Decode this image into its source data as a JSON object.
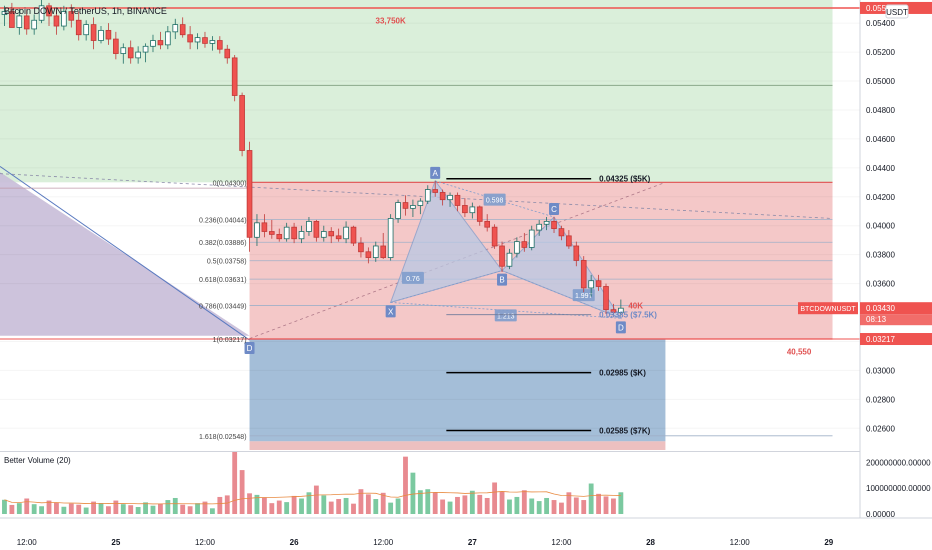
{
  "header": {
    "symbol": "Bitcoin DOWN / TetherUS, 1h, BINANCE",
    "currency": "USDT"
  },
  "colors": {
    "up": "#26a69a",
    "down": "#ef5350",
    "green_zone": "#d8eed8",
    "red_zone": "#f3c2c2",
    "blue_zone": "#9fbad6",
    "purple_zone": "#c8bcd8",
    "pattern_fill": "#b8c8e4",
    "pattern_line": "#7e9ccc",
    "price_tag": "#ef5350",
    "level_line": "#ef5350"
  },
  "chart_data": [
    {
      "type": "candlestick",
      "title": "",
      "symbol_label": "Bitcoin DOWN / TetherUS, 1h, BINANCE",
      "y_ticks": [
        "0.05400",
        "0.05200",
        "0.05000",
        "0.04800",
        "0.04600",
        "0.04400",
        "0.04200",
        "0.04000",
        "0.03800",
        "0.03600",
        "0.03200",
        "0.03000",
        "0.02800",
        "0.02600"
      ],
      "y_tick_values": [
        0.054,
        0.052,
        0.05,
        0.048,
        0.046,
        0.044,
        0.042,
        0.04,
        0.038,
        0.036,
        0.032,
        0.03,
        0.028,
        0.026
      ],
      "ylim": [
        0.0245,
        0.0556
      ],
      "x_ticks": [
        "12:00",
        "25",
        "12:00",
        "26",
        "12:00",
        "27",
        "12:00",
        "28",
        "12:00",
        "29"
      ],
      "x_tick_values": [
        12,
        24,
        36,
        48,
        60,
        72,
        84,
        96,
        108,
        120
      ],
      "xlim": [
        8.4,
        124.2
      ],
      "candles": [
        {
          "t": 9,
          "o": 0.0546,
          "h": 0.0552,
          "l": 0.0538,
          "c": 0.0548
        },
        {
          "t": 10,
          "o": 0.0548,
          "h": 0.0554,
          "l": 0.054,
          "c": 0.0537
        },
        {
          "t": 11,
          "o": 0.0537,
          "h": 0.055,
          "l": 0.0532,
          "c": 0.0545
        },
        {
          "t": 12,
          "o": 0.0545,
          "h": 0.0549,
          "l": 0.0532,
          "c": 0.0536
        },
        {
          "t": 13,
          "o": 0.0536,
          "h": 0.0546,
          "l": 0.0532,
          "c": 0.0542
        },
        {
          "t": 14,
          "o": 0.0542,
          "h": 0.0556,
          "l": 0.054,
          "c": 0.0552
        },
        {
          "t": 15,
          "o": 0.0552,
          "h": 0.0554,
          "l": 0.0538,
          "c": 0.0545
        },
        {
          "t": 16,
          "o": 0.0545,
          "h": 0.0549,
          "l": 0.0532,
          "c": 0.0538
        },
        {
          "t": 17,
          "o": 0.0538,
          "h": 0.0552,
          "l": 0.0535,
          "c": 0.0548
        },
        {
          "t": 18,
          "o": 0.0548,
          "h": 0.0553,
          "l": 0.0537,
          "c": 0.0542
        },
        {
          "t": 19,
          "o": 0.0542,
          "h": 0.0548,
          "l": 0.0528,
          "c": 0.0532
        },
        {
          "t": 20,
          "o": 0.0532,
          "h": 0.0542,
          "l": 0.0528,
          "c": 0.0539
        },
        {
          "t": 21,
          "o": 0.0539,
          "h": 0.0544,
          "l": 0.0522,
          "c": 0.0528
        },
        {
          "t": 22,
          "o": 0.0528,
          "h": 0.0538,
          "l": 0.0526,
          "c": 0.0535
        },
        {
          "t": 23,
          "o": 0.0535,
          "h": 0.054,
          "l": 0.0525,
          "c": 0.0529
        },
        {
          "t": 24,
          "o": 0.0529,
          "h": 0.0534,
          "l": 0.0515,
          "c": 0.0519
        },
        {
          "t": 25,
          "o": 0.0519,
          "h": 0.0526,
          "l": 0.0512,
          "c": 0.0523
        },
        {
          "t": 26,
          "o": 0.0523,
          "h": 0.0528,
          "l": 0.0512,
          "c": 0.0516
        },
        {
          "t": 27,
          "o": 0.0516,
          "h": 0.0524,
          "l": 0.0512,
          "c": 0.052
        },
        {
          "t": 28,
          "o": 0.052,
          "h": 0.0526,
          "l": 0.0513,
          "c": 0.0524
        },
        {
          "t": 29,
          "o": 0.0524,
          "h": 0.0532,
          "l": 0.052,
          "c": 0.0528
        },
        {
          "t": 30,
          "o": 0.0528,
          "h": 0.0534,
          "l": 0.0522,
          "c": 0.0525
        },
        {
          "t": 31,
          "o": 0.0525,
          "h": 0.0538,
          "l": 0.0522,
          "c": 0.0534
        },
        {
          "t": 32,
          "o": 0.0534,
          "h": 0.0543,
          "l": 0.0529,
          "c": 0.0539
        },
        {
          "t": 33,
          "o": 0.0539,
          "h": 0.0544,
          "l": 0.053,
          "c": 0.0532
        },
        {
          "t": 34,
          "o": 0.0532,
          "h": 0.0538,
          "l": 0.0522,
          "c": 0.0527
        },
        {
          "t": 35,
          "o": 0.0527,
          "h": 0.0533,
          "l": 0.0522,
          "c": 0.053
        },
        {
          "t": 36,
          "o": 0.053,
          "h": 0.0534,
          "l": 0.0523,
          "c": 0.0526
        },
        {
          "t": 37,
          "o": 0.0526,
          "h": 0.0531,
          "l": 0.0521,
          "c": 0.0528
        },
        {
          "t": 38,
          "o": 0.0528,
          "h": 0.0531,
          "l": 0.0519,
          "c": 0.0522
        },
        {
          "t": 39,
          "o": 0.0522,
          "h": 0.0525,
          "l": 0.0512,
          "c": 0.0516
        },
        {
          "t": 40,
          "o": 0.0516,
          "h": 0.0518,
          "l": 0.0486,
          "c": 0.049
        },
        {
          "t": 41,
          "o": 0.049,
          "h": 0.0492,
          "l": 0.0448,
          "c": 0.0452
        },
        {
          "t": 42,
          "o": 0.0452,
          "h": 0.0458,
          "l": 0.0382,
          "c": 0.0392
        },
        {
          "t": 43,
          "o": 0.0392,
          "h": 0.0408,
          "l": 0.0386,
          "c": 0.0402
        },
        {
          "t": 44,
          "o": 0.0402,
          "h": 0.0408,
          "l": 0.0392,
          "c": 0.0396
        },
        {
          "t": 45,
          "o": 0.0396,
          "h": 0.0404,
          "l": 0.0391,
          "c": 0.0394
        },
        {
          "t": 46,
          "o": 0.0394,
          "h": 0.0398,
          "l": 0.0389,
          "c": 0.0391
        },
        {
          "t": 47,
          "o": 0.0391,
          "h": 0.0402,
          "l": 0.0389,
          "c": 0.0399
        },
        {
          "t": 48,
          "o": 0.0399,
          "h": 0.0402,
          "l": 0.0388,
          "c": 0.0391
        },
        {
          "t": 49,
          "o": 0.0391,
          "h": 0.04,
          "l": 0.0388,
          "c": 0.0396
        },
        {
          "t": 50,
          "o": 0.0396,
          "h": 0.0406,
          "l": 0.0393,
          "c": 0.0403
        },
        {
          "t": 51,
          "o": 0.0403,
          "h": 0.0404,
          "l": 0.0389,
          "c": 0.0392
        },
        {
          "t": 52,
          "o": 0.0392,
          "h": 0.04,
          "l": 0.0389,
          "c": 0.0396
        },
        {
          "t": 53,
          "o": 0.0396,
          "h": 0.0399,
          "l": 0.0388,
          "c": 0.0393
        },
        {
          "t": 54,
          "o": 0.0393,
          "h": 0.0398,
          "l": 0.0389,
          "c": 0.0391
        },
        {
          "t": 55,
          "o": 0.0391,
          "h": 0.0403,
          "l": 0.0388,
          "c": 0.0399
        },
        {
          "t": 56,
          "o": 0.0399,
          "h": 0.04,
          "l": 0.0386,
          "c": 0.0388
        },
        {
          "t": 57,
          "o": 0.0388,
          "h": 0.0392,
          "l": 0.0378,
          "c": 0.0382
        },
        {
          "t": 58,
          "o": 0.0382,
          "h": 0.0385,
          "l": 0.0374,
          "c": 0.0378
        },
        {
          "t": 59,
          "o": 0.0378,
          "h": 0.0389,
          "l": 0.0375,
          "c": 0.0386
        },
        {
          "t": 60,
          "o": 0.0386,
          "h": 0.0395,
          "l": 0.0377,
          "c": 0.0378
        },
        {
          "t": 61,
          "o": 0.0378,
          "h": 0.0408,
          "l": 0.0376,
          "c": 0.0405
        },
        {
          "t": 62,
          "o": 0.0405,
          "h": 0.0418,
          "l": 0.0402,
          "c": 0.0416
        },
        {
          "t": 63,
          "o": 0.0416,
          "h": 0.0421,
          "l": 0.0407,
          "c": 0.0412
        },
        {
          "t": 64,
          "o": 0.0412,
          "h": 0.0418,
          "l": 0.0406,
          "c": 0.0414
        },
        {
          "t": 65,
          "o": 0.0414,
          "h": 0.0419,
          "l": 0.0408,
          "c": 0.0417
        },
        {
          "t": 66,
          "o": 0.0417,
          "h": 0.0428,
          "l": 0.0415,
          "c": 0.0425
        },
        {
          "t": 67,
          "o": 0.0425,
          "h": 0.0431,
          "l": 0.042,
          "c": 0.0423
        },
        {
          "t": 68,
          "o": 0.0423,
          "h": 0.0425,
          "l": 0.0414,
          "c": 0.0418
        },
        {
          "t": 69,
          "o": 0.0418,
          "h": 0.0423,
          "l": 0.0413,
          "c": 0.0421
        },
        {
          "t": 70,
          "o": 0.0421,
          "h": 0.0423,
          "l": 0.041,
          "c": 0.0414
        },
        {
          "t": 71,
          "o": 0.0414,
          "h": 0.0419,
          "l": 0.0406,
          "c": 0.0409
        },
        {
          "t": 72,
          "o": 0.0409,
          "h": 0.0416,
          "l": 0.0405,
          "c": 0.0413
        },
        {
          "t": 73,
          "o": 0.0413,
          "h": 0.0414,
          "l": 0.04,
          "c": 0.0403
        },
        {
          "t": 74,
          "o": 0.0403,
          "h": 0.0408,
          "l": 0.0396,
          "c": 0.0399
        },
        {
          "t": 75,
          "o": 0.0399,
          "h": 0.0401,
          "l": 0.0384,
          "c": 0.0386
        },
        {
          "t": 76,
          "o": 0.0386,
          "h": 0.0389,
          "l": 0.0368,
          "c": 0.0372
        },
        {
          "t": 77,
          "o": 0.0372,
          "h": 0.0384,
          "l": 0.037,
          "c": 0.0381
        },
        {
          "t": 78,
          "o": 0.0381,
          "h": 0.0392,
          "l": 0.0378,
          "c": 0.0389
        },
        {
          "t": 79,
          "o": 0.0389,
          "h": 0.0395,
          "l": 0.0382,
          "c": 0.0385
        },
        {
          "t": 80,
          "o": 0.0385,
          "h": 0.04,
          "l": 0.0383,
          "c": 0.0397
        },
        {
          "t": 81,
          "o": 0.0397,
          "h": 0.0404,
          "l": 0.0393,
          "c": 0.0401
        },
        {
          "t": 82,
          "o": 0.0401,
          "h": 0.0406,
          "l": 0.0397,
          "c": 0.0403
        },
        {
          "t": 83,
          "o": 0.0403,
          "h": 0.0406,
          "l": 0.0395,
          "c": 0.0398
        },
        {
          "t": 84,
          "o": 0.0398,
          "h": 0.04,
          "l": 0.039,
          "c": 0.0393
        },
        {
          "t": 85,
          "o": 0.0393,
          "h": 0.0397,
          "l": 0.0384,
          "c": 0.0386
        },
        {
          "t": 86,
          "o": 0.0386,
          "h": 0.0389,
          "l": 0.0372,
          "c": 0.0376
        },
        {
          "t": 87,
          "o": 0.0376,
          "h": 0.0379,
          "l": 0.0354,
          "c": 0.0357
        },
        {
          "t": 88,
          "o": 0.0357,
          "h": 0.0366,
          "l": 0.0351,
          "c": 0.0362
        },
        {
          "t": 89,
          "o": 0.0362,
          "h": 0.0366,
          "l": 0.0355,
          "c": 0.0358
        },
        {
          "t": 90,
          "o": 0.0358,
          "h": 0.036,
          "l": 0.0339,
          "c": 0.0342
        },
        {
          "t": 91,
          "o": 0.0342,
          "h": 0.0346,
          "l": 0.0338,
          "c": 0.034
        },
        {
          "t": 92,
          "o": 0.034,
          "h": 0.0349,
          "l": 0.0338,
          "c": 0.0343
        }
      ],
      "volume": {
        "title": "Better Volume (20)",
        "y_ticks": [
          "200000000.00000",
          "100000000.00000",
          "0.00000"
        ],
        "y_tick_values": [
          200000000,
          100000000,
          0
        ],
        "ylim": [
          0,
          240000000
        ],
        "values": [
          55000000,
          35000000,
          42000000,
          60000000,
          38000000,
          30000000,
          52000000,
          44000000,
          28000000,
          40000000,
          36000000,
          25000000,
          48000000,
          42000000,
          30000000,
          52000000,
          38000000,
          34000000,
          27000000,
          45000000,
          32000000,
          40000000,
          54000000,
          62000000,
          36000000,
          30000000,
          42000000,
          48000000,
          22000000,
          66000000,
          72000000,
          240000000,
          170000000,
          80000000,
          74000000,
          64000000,
          42000000,
          52000000,
          46000000,
          70000000,
          60000000,
          84000000,
          110000000,
          72000000,
          48000000,
          58000000,
          62000000,
          40000000,
          96000000,
          76000000,
          58000000,
          82000000,
          44000000,
          60000000,
          222000000,
          160000000,
          92000000,
          96000000,
          84000000,
          56000000,
          48000000,
          66000000,
          72000000,
          90000000,
          74000000,
          62000000,
          122000000,
          86000000,
          56000000,
          66000000,
          92000000,
          60000000,
          50000000,
          62000000,
          54000000,
          44000000,
          84000000,
          64000000,
          54000000,
          118000000,
          78000000,
          68000000,
          60000000,
          84000000
        ]
      },
      "fib_levels": [
        {
          "ratio": "0",
          "label": "0(0.04300)",
          "value": 0.043
        },
        {
          "ratio": "0.236",
          "label": "0.236(0.04044)",
          "value": 0.04044
        },
        {
          "ratio": "0.382",
          "label": "0.382(0.03886)",
          "value": 0.03886
        },
        {
          "ratio": "0.5",
          "label": "0.5(0.03758)",
          "value": 0.03758
        },
        {
          "ratio": "0.618",
          "label": "0.618(0.03631)",
          "value": 0.03631
        },
        {
          "ratio": "0.786",
          "label": "0.786(0.03449)",
          "value": 0.03449
        },
        {
          "ratio": "1",
          "label": "1(0.03217)",
          "value": 0.03217
        },
        {
          "ratio": "1.618",
          "label": "1.618(0.02548)",
          "value": 0.02548
        }
      ],
      "pattern_points": [
        {
          "name": "X",
          "t": 61,
          "v": 0.0347
        },
        {
          "name": "A",
          "t": 67,
          "v": 0.0431
        },
        {
          "name": "B",
          "t": 76,
          "v": 0.0369
        },
        {
          "name": "C",
          "t": 83,
          "v": 0.0406
        },
        {
          "name": "D",
          "t": 92,
          "v": 0.0336
        }
      ],
      "pattern_ratios": [
        {
          "label": "0.76",
          "t": 64,
          "v": 0.0364
        },
        {
          "label": "0.598",
          "t": 75,
          "v": 0.0418
        },
        {
          "label": "1.997",
          "t": 87,
          "v": 0.0352
        },
        {
          "label": "1.213",
          "t": 76.5,
          "v": 0.0338
        }
      ],
      "targets": [
        {
          "label": "0.04325 ($5K)",
          "value": 0.04325
        },
        {
          "label": "0.03385 ($7.5K)",
          "value": 0.03385
        },
        {
          "label": "0.02985 ($K)",
          "value": 0.02985
        },
        {
          "label": "0.02585 ($7K)",
          "value": 0.02585
        }
      ],
      "annotations": [
        {
          "label": "33,750K",
          "t": 61,
          "v": 0.0542
        },
        {
          "label": "40K",
          "t": 94,
          "v": 0.0345
        },
        {
          "label": "40,550",
          "t": 116,
          "v": 0.0313
        }
      ],
      "price_tags": [
        {
          "label": "0.05505",
          "value": 0.05505,
          "color": "#ef5350"
        },
        {
          "label": "0.03430",
          "value": 0.0343,
          "color": "#ef5350",
          "countdown": "08:13",
          "symbol": "BTCDOWNUSDT"
        },
        {
          "label": "0.03217",
          "value": 0.03217,
          "color": "#ef5350"
        }
      ],
      "green_box": {
        "top": 0.0556,
        "bottom": 0.043,
        "t0": 8.4,
        "t1": 120.5
      },
      "inner_green": {
        "top": 0.0497,
        "bottom": 0.0497
      },
      "red_box": {
        "top": 0.043,
        "bottom": 0.03217,
        "t0": 42,
        "t1": 120.5
      },
      "blue_box": {
        "top": 0.03217,
        "bottom": 0.0251,
        "t0": 42,
        "t1": 98
      },
      "legend": "none",
      "grid": true
    }
  ]
}
